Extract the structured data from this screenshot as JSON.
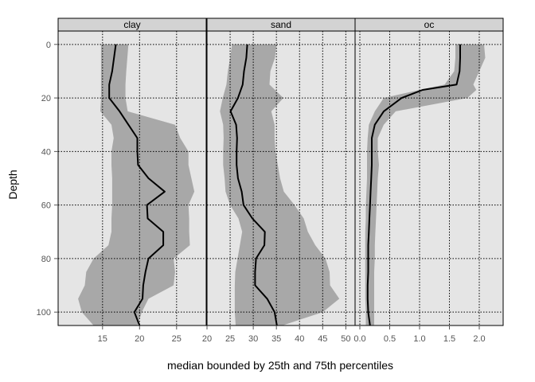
{
  "chart_data": {
    "type": "line",
    "layout": "faceted-panels",
    "xlabel": "median bounded by 25th and 75th percentiles",
    "ylabel": "Depth",
    "y_axis": {
      "range": [
        105,
        -5
      ],
      "reversed": true,
      "ticks": [
        "0",
        "20",
        "40",
        "60",
        "80",
        "100"
      ],
      "tick_values": [
        0,
        20,
        40,
        60,
        80,
        100
      ]
    },
    "grid": true,
    "colors": {
      "panel_background": "#e5e5e5",
      "band_fill": "#a8a8a8",
      "median_line": "#000000",
      "strip_background": "#d3d3d3",
      "grid_line": "#000000"
    },
    "panels": [
      {
        "strip": "clay",
        "xlim": [
          9,
          29
        ],
        "x_ticks": [
          "15",
          "20",
          "25"
        ],
        "x_tick_values": [
          15,
          20,
          25
        ],
        "series": {
          "depth": [
            0,
            10,
            15,
            20,
            25,
            30,
            35,
            40,
            45,
            50,
            55,
            60,
            65,
            70,
            75,
            80,
            85,
            90,
            95,
            100,
            105
          ],
          "median": [
            16.8,
            16.3,
            15.9,
            15.9,
            17.3,
            18.5,
            19.7,
            19.7,
            19.8,
            21.2,
            23.4,
            21.0,
            21.1,
            23.2,
            23.2,
            21.2,
            20.8,
            20.5,
            20.4,
            19.3,
            20.0
          ],
          "p25": [
            14.8,
            14.8,
            14.8,
            14.8,
            14.7,
            16.2,
            16.5,
            16.2,
            16.2,
            16.3,
            16.3,
            16.3,
            16.2,
            16.2,
            15.8,
            13.8,
            12.8,
            12.6,
            11.7,
            12.2,
            13.8
          ],
          "p75": [
            18.5,
            18.2,
            18.1,
            18.1,
            18.4,
            24.8,
            25.5,
            26.6,
            26.6,
            27.0,
            27.4,
            26.6,
            26.7,
            26.7,
            26.8,
            24.6,
            24.8,
            24.6,
            21.2,
            20.3,
            19.7
          ]
        }
      },
      {
        "strip": "sand",
        "xlim": [
          20,
          52
        ],
        "x_ticks": [
          "20",
          "25",
          "30",
          "35",
          "40",
          "45",
          "50"
        ],
        "x_tick_values": [
          20,
          25,
          30,
          35,
          40,
          45,
          50
        ],
        "series": {
          "depth": [
            0,
            5,
            10,
            15,
            20,
            25,
            30,
            35,
            40,
            45,
            50,
            55,
            60,
            65,
            70,
            75,
            80,
            85,
            90,
            95,
            100,
            105
          ],
          "median": [
            28.7,
            28.5,
            28.0,
            27.7,
            26.7,
            25.1,
            26.3,
            26.5,
            26.4,
            26.4,
            26.7,
            27.5,
            27.9,
            29.8,
            32.5,
            32.4,
            30.6,
            30.4,
            30.4,
            33.0,
            34.6,
            35.1
          ],
          "p25": [
            25.4,
            25.0,
            24.5,
            24.2,
            23.4,
            22.8,
            23.5,
            23.6,
            23.5,
            23.5,
            23.8,
            24.0,
            25.0,
            26.8,
            27.6,
            27.1,
            26.6,
            26.1,
            26.0,
            26.0,
            26.0,
            26.2
          ],
          "p75": [
            35.0,
            34.7,
            33.7,
            33.5,
            36.5,
            33.9,
            34.6,
            34.6,
            34.8,
            35.3,
            35.8,
            36.6,
            38.9,
            40.9,
            41.8,
            43.4,
            45.6,
            46.5,
            46.6,
            48.6,
            45.0,
            36.3
          ]
        }
      },
      {
        "strip": "oc",
        "xlim": [
          -0.08,
          2.4
        ],
        "x_ticks": [
          "0.0",
          "0.5",
          "1.0",
          "1.5",
          "2.0"
        ],
        "x_tick_values": [
          0.0,
          0.5,
          1.0,
          1.5,
          2.0
        ],
        "series": {
          "depth": [
            0,
            5,
            10,
            15,
            17,
            20,
            25,
            30,
            35,
            40,
            45,
            50,
            55,
            60,
            65,
            70,
            75,
            80,
            85,
            90,
            95,
            100,
            105
          ],
          "median": [
            1.68,
            1.68,
            1.67,
            1.62,
            1.05,
            0.7,
            0.4,
            0.25,
            0.2,
            0.2,
            0.2,
            0.19,
            0.18,
            0.17,
            0.16,
            0.15,
            0.14,
            0.14,
            0.14,
            0.13,
            0.13,
            0.14,
            0.17
          ],
          "p25": [
            1.6,
            1.6,
            1.58,
            1.42,
            1.0,
            0.4,
            0.25,
            0.15,
            0.13,
            0.12,
            0.12,
            0.12,
            0.11,
            0.1,
            0.1,
            0.09,
            0.09,
            0.09,
            0.09,
            0.09,
            0.09,
            0.1,
            0.1
          ],
          "p75": [
            2.08,
            2.1,
            2.0,
            1.9,
            1.95,
            1.8,
            0.6,
            0.4,
            0.3,
            0.3,
            0.32,
            0.3,
            0.29,
            0.28,
            0.27,
            0.26,
            0.25,
            0.25,
            0.24,
            0.24,
            0.24,
            0.24,
            0.24
          ]
        }
      }
    ]
  }
}
